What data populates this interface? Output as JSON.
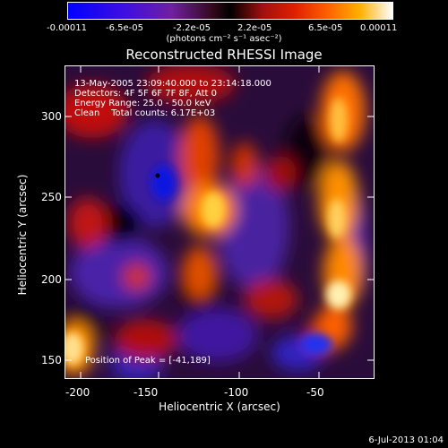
{
  "colorbar": {
    "ticks": [
      "-0.00011",
      "-6.5e-05",
      "-2.2e-05",
      "2.2e-05",
      "6.5e-05",
      "0.00011"
    ],
    "unit_label": "(photons cm⁻² s⁻¹ asec⁻²)"
  },
  "title": "Reconstructed RHESSI Image",
  "info": {
    "line1": "13-May-2005 23:09:40.000 to 23:14:18.000",
    "line2": "Detectors: 4F 5F 6F 7F 8F, Att 0",
    "line3": "Energy Range: 25.0 - 50.0 keV",
    "line4": "Clean    Total counts: 6.17E+03",
    "peak": "Position of Peak = [-41,189]"
  },
  "axes": {
    "xlabel": "Heliocentric X (arcsec)",
    "ylabel": "Heliocentric Y (arcsec)",
    "xticks": [
      "-200",
      "-150",
      "-100",
      "-50"
    ],
    "yticks": [
      "300",
      "250",
      "200",
      "150"
    ]
  },
  "footer": "6-Jul-2013 01:04",
  "colors": {
    "background": "#000000",
    "foreground": "#ffffff"
  }
}
